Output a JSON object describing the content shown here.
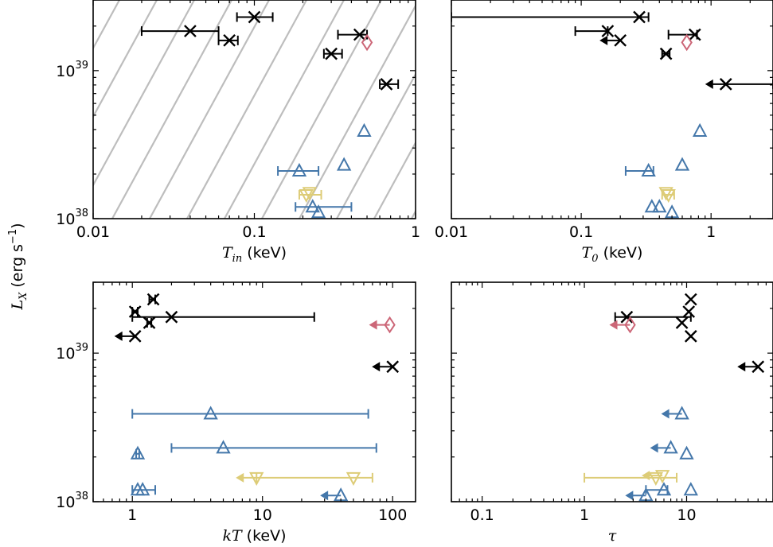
{
  "figure": {
    "ylabel_main": "L",
    "ylabel_sub": "X",
    "ylabel_unit_pre": "(erg s",
    "ylabel_unit_sup": "−1",
    "ylabel_unit_post": ")"
  },
  "colors": {
    "black": "#000000",
    "blue": "#4477aa",
    "yellow": "#ddcc77",
    "red": "#cc6677",
    "grey": "#bdbdbd"
  },
  "chart_data": [
    {
      "type": "scatter",
      "xscale": "log",
      "yscale": "log",
      "xlim": [
        0.01,
        1
      ],
      "ylim": [
        1e+38,
        3e+39
      ],
      "xlabel": {
        "sym": "T",
        "sub": "in",
        "unit": "(keV)"
      },
      "xticks": [
        {
          "v": 0.01,
          "label": "0.01"
        },
        {
          "v": 0.1,
          "label": "0.1"
        },
        {
          "v": 1,
          "label": "1"
        }
      ],
      "yticks": [
        {
          "v": 1e+38,
          "base": "10",
          "exp": "38"
        },
        {
          "v": 1e+39,
          "base": "10",
          "exp": "39"
        }
      ],
      "show_ylabels": true,
      "background_lines": true,
      "series": [
        {
          "marker": "x",
          "color": "black",
          "points": [
            {
              "x": 0.04,
              "y": 1.85e+39,
              "xerr": [
                0.02,
                0.06
              ]
            },
            {
              "x": 0.1,
              "y": 2.3e+39,
              "xerr": [
                0.078,
                0.13
              ]
            },
            {
              "x": 0.07,
              "y": 1.6e+39,
              "xerr": [
                0.06,
                0.079
              ]
            },
            {
              "x": 0.45,
              "y": 1.75e+39,
              "xerr": [
                0.33,
                0.5
              ]
            },
            {
              "x": 0.3,
              "y": 1.3e+39,
              "xerr": [
                0.27,
                0.35
              ]
            },
            {
              "x": 0.66,
              "y": 8.1e+38,
              "xerr": [
                0.6,
                0.78
              ]
            }
          ]
        },
        {
          "marker": "diamond",
          "color": "red",
          "points": [
            {
              "x": 0.5,
              "y": 1.55e+39
            }
          ]
        },
        {
          "marker": "triangle-up",
          "color": "blue",
          "points": [
            {
              "x": 0.48,
              "y": 3.9e+38
            },
            {
              "x": 0.36,
              "y": 2.3e+38
            },
            {
              "x": 0.19,
              "y": 2.1e+38,
              "xerr": [
                0.14,
                0.25
              ]
            },
            {
              "x": 0.23,
              "y": 1.2e+38,
              "xerr": [
                0.18,
                0.4
              ]
            },
            {
              "x": 0.25,
              "y": 1.1e+38
            }
          ]
        },
        {
          "marker": "triangle-down",
          "color": "yellow",
          "points": [
            {
              "x": 0.21,
              "y": 1.45e+38,
              "xerr": [
                0.19,
                0.26
              ]
            },
            {
              "x": 0.22,
              "y": 1.5e+38
            }
          ]
        }
      ]
    },
    {
      "type": "scatter",
      "xscale": "log",
      "yscale": "log",
      "xlim": [
        0.01,
        3
      ],
      "ylim": [
        1e+38,
        3e+39
      ],
      "xlabel": {
        "sym": "T",
        "sub": "0",
        "unit": "(keV)"
      },
      "xticks": [
        {
          "v": 0.01,
          "label": "0.01"
        },
        {
          "v": 0.1,
          "label": "0.1"
        },
        {
          "v": 1,
          "label": "1"
        }
      ],
      "yticks": [
        {
          "v": 1e+38,
          "base": "10",
          "exp": "38"
        },
        {
          "v": 1e+39,
          "base": "10",
          "exp": "39"
        }
      ],
      "show_ylabels": false,
      "background_lines": false,
      "series": [
        {
          "marker": "x",
          "color": "black",
          "points": [
            {
              "x": 0.28,
              "y": 2.3e+39,
              "xerr": [
                0.01,
                0.33
              ]
            },
            {
              "x": 0.16,
              "y": 1.85e+39,
              "xerr": [
                0.09,
                0.16
              ]
            },
            {
              "x": 0.2,
              "y": 1.6e+39,
              "upper_x": true
            },
            {
              "x": 0.75,
              "y": 1.75e+39,
              "xerr": [
                0.47,
                0.78
              ]
            },
            {
              "x": 0.45,
              "y": 1.3e+39,
              "xerr": [
                0.42,
                0.48
              ]
            },
            {
              "x": 1.3,
              "y": 8.1e+38,
              "xerr": [
                1.3,
                3.0
              ],
              "upper_x": true
            }
          ]
        },
        {
          "marker": "diamond",
          "color": "red",
          "points": [
            {
              "x": 0.65,
              "y": 1.55e+39
            }
          ]
        },
        {
          "marker": "triangle-up",
          "color": "blue",
          "points": [
            {
              "x": 0.82,
              "y": 3.9e+38
            },
            {
              "x": 0.6,
              "y": 2.3e+38
            },
            {
              "x": 0.33,
              "y": 2.1e+38,
              "xerr": [
                0.22,
                0.36
              ]
            },
            {
              "x": 0.35,
              "y": 1.2e+38
            },
            {
              "x": 0.4,
              "y": 1.2e+38
            },
            {
              "x": 0.5,
              "y": 1.1e+38
            }
          ]
        },
        {
          "marker": "triangle-down",
          "color": "yellow",
          "points": [
            {
              "x": 0.47,
              "y": 1.45e+38,
              "xerr": [
                0.42,
                0.52
              ]
            },
            {
              "x": 0.45,
              "y": 1.5e+38
            }
          ]
        }
      ]
    },
    {
      "type": "scatter",
      "xscale": "log",
      "yscale": "log",
      "xlim": [
        0.5,
        150
      ],
      "ylim": [
        1e+38,
        3e+39
      ],
      "xlabel": {
        "sym": "kT",
        "sub": "",
        "unit": "(keV)"
      },
      "xticks": [
        {
          "v": 1,
          "label": "1"
        },
        {
          "v": 10,
          "label": "10"
        },
        {
          "v": 100,
          "label": "100"
        }
      ],
      "yticks": [
        {
          "v": 1e+38,
          "base": "10",
          "exp": "38"
        },
        {
          "v": 1e+39,
          "base": "10",
          "exp": "39"
        }
      ],
      "show_ylabels": true,
      "background_lines": false,
      "series": [
        {
          "marker": "x",
          "color": "black",
          "points": [
            {
              "x": 1.05,
              "y": 1.9e+39,
              "xerr": [
                1.0,
                1.1
              ]
            },
            {
              "x": 1.45,
              "y": 2.3e+39,
              "xerr": [
                1.35,
                1.5
              ]
            },
            {
              "x": 2.0,
              "y": 1.75e+39,
              "xerr": [
                1.0,
                25.0
              ]
            },
            {
              "x": 1.35,
              "y": 1.6e+39,
              "xerr": [
                1.3,
                1.4
              ]
            },
            {
              "x": 1.05,
              "y": 1.3e+39,
              "upper_x": true
            },
            {
              "x": 100,
              "y": 8.1e+38,
              "upper_x": true
            }
          ]
        },
        {
          "marker": "diamond",
          "color": "red",
          "points": [
            {
              "x": 95,
              "y": 1.55e+39,
              "upper_x": true
            }
          ]
        },
        {
          "marker": "triangle-up",
          "color": "blue",
          "points": [
            {
              "x": 4.0,
              "y": 3.9e+38,
              "xerr": [
                1.0,
                65.0
              ]
            },
            {
              "x": 5.0,
              "y": 2.3e+38,
              "xerr": [
                2.0,
                75.0
              ]
            },
            {
              "x": 1.1,
              "y": 2.1e+38,
              "xerr": [
                1.07,
                1.13
              ]
            },
            {
              "x": 1.1,
              "y": 1.2e+38,
              "xerr": [
                1.0,
                1.5
              ]
            },
            {
              "x": 1.2,
              "y": 1.2e+38
            },
            {
              "x": 40,
              "y": 1.1e+38,
              "upper_x": true
            }
          ]
        },
        {
          "marker": "triangle-down",
          "color": "yellow",
          "points": [
            {
              "x": 9.0,
              "y": 1.45e+38,
              "upper_x": true
            },
            {
              "x": 50,
              "y": 1.45e+38,
              "xerr": [
                9.0,
                70.0
              ]
            }
          ]
        }
      ]
    },
    {
      "type": "scatter",
      "xscale": "log",
      "yscale": "log",
      "xlim": [
        0.05,
        70
      ],
      "ylim": [
        1e+38,
        3e+39
      ],
      "xlabel": {
        "sym": "τ",
        "sub": "",
        "unit": ""
      },
      "xticks": [
        {
          "v": 0.1,
          "label": "0.1"
        },
        {
          "v": 1,
          "label": "1"
        },
        {
          "v": 10,
          "label": "10"
        }
      ],
      "yticks": [
        {
          "v": 1e+38,
          "base": "10",
          "exp": "38"
        },
        {
          "v": 1e+39,
          "base": "10",
          "exp": "39"
        }
      ],
      "show_ylabels": false,
      "background_lines": false,
      "series": [
        {
          "marker": "x",
          "color": "black",
          "points": [
            {
              "x": 11,
              "y": 2.3e+39
            },
            {
              "x": 10.5,
              "y": 1.9e+39
            },
            {
              "x": 2.6,
              "y": 1.75e+39,
              "xerr": [
                2.0,
                11.0
              ]
            },
            {
              "x": 9.0,
              "y": 1.6e+39
            },
            {
              "x": 11,
              "y": 1.3e+39
            },
            {
              "x": 50,
              "y": 8.1e+38,
              "upper_x": true
            }
          ]
        },
        {
          "marker": "diamond",
          "color": "red",
          "points": [
            {
              "x": 2.8,
              "y": 1.55e+39,
              "upper_x": true
            }
          ]
        },
        {
          "marker": "triangle-up",
          "color": "blue",
          "points": [
            {
              "x": 9.0,
              "y": 3.9e+38,
              "upper_x": true
            },
            {
              "x": 7.0,
              "y": 2.3e+38,
              "upper_x": true
            },
            {
              "x": 10,
              "y": 2.1e+38
            },
            {
              "x": 11,
              "y": 1.2e+38
            },
            {
              "x": 6.0,
              "y": 1.2e+38,
              "xerr": [
                4.0,
                6.5
              ]
            },
            {
              "x": 4.0,
              "y": 1.1e+38,
              "upper_x": true
            }
          ]
        },
        {
          "marker": "triangle-down",
          "color": "yellow",
          "points": [
            {
              "x": 5.0,
              "y": 1.45e+38,
              "xerr": [
                1.0,
                8.0
              ]
            },
            {
              "x": 5.8,
              "y": 1.5e+38,
              "upper_x": true
            }
          ]
        }
      ]
    }
  ]
}
